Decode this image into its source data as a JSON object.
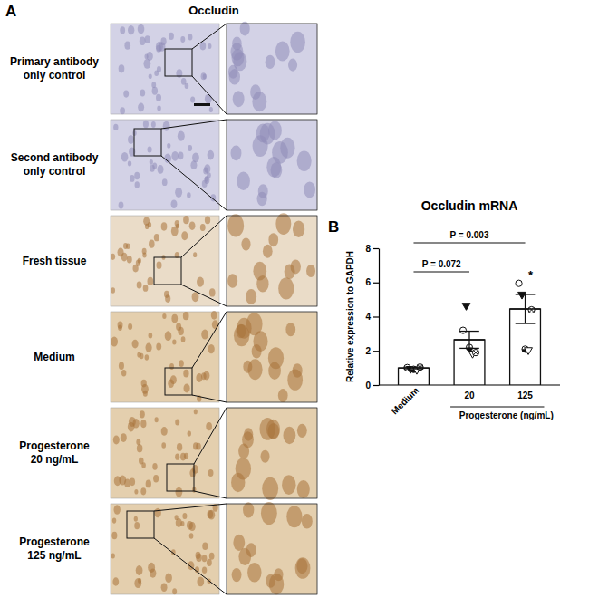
{
  "panel_a": {
    "panel": "A",
    "title": "Occludin",
    "rows": [
      [
        "Primary antibody",
        "only control"
      ],
      [
        "Second antibody",
        "only control"
      ],
      [
        "Fresh tissue"
      ],
      [
        "Medium"
      ],
      [
        "Progesterone",
        "20 ng/mL"
      ],
      [
        "Progesterone",
        "125 ng/mL"
      ]
    ]
  },
  "chart_data": {
    "type": "bar",
    "panel": "B",
    "title": "Occludin mRNA",
    "ylabel": "Relative expression to GAPDH",
    "categories": [
      "Medium",
      "20",
      "125"
    ],
    "x_group": {
      "label": "Progesterone (ng/mL)",
      "categories": [
        "20",
        "125"
      ]
    },
    "values": [
      1.0,
      2.65,
      4.45
    ],
    "errors": [
      0.05,
      0.5,
      0.85
    ],
    "color": "#ffffff",
    "points": [
      [
        1.02,
        0.95,
        0.92,
        0.9,
        1.05
      ],
      [
        3.2,
        4.65,
        2.2,
        1.85,
        1.9
      ],
      [
        5.95,
        5.3,
        2.1,
        2.05,
        4.4
      ]
    ],
    "markers": [
      "circle-open",
      "triangle-down",
      "circle-half",
      "triangle-down-open",
      "circle-x"
    ],
    "annotations": [
      {
        "text": "P = 0.072",
        "between": [
          "Medium",
          "20"
        ]
      },
      {
        "text": "P = 0.003",
        "between": [
          "Medium",
          "125"
        ]
      },
      {
        "text": "*",
        "category": "125"
      }
    ],
    "ylim": [
      0,
      8
    ],
    "yticks": [
      0,
      2,
      4,
      6,
      8
    ]
  }
}
